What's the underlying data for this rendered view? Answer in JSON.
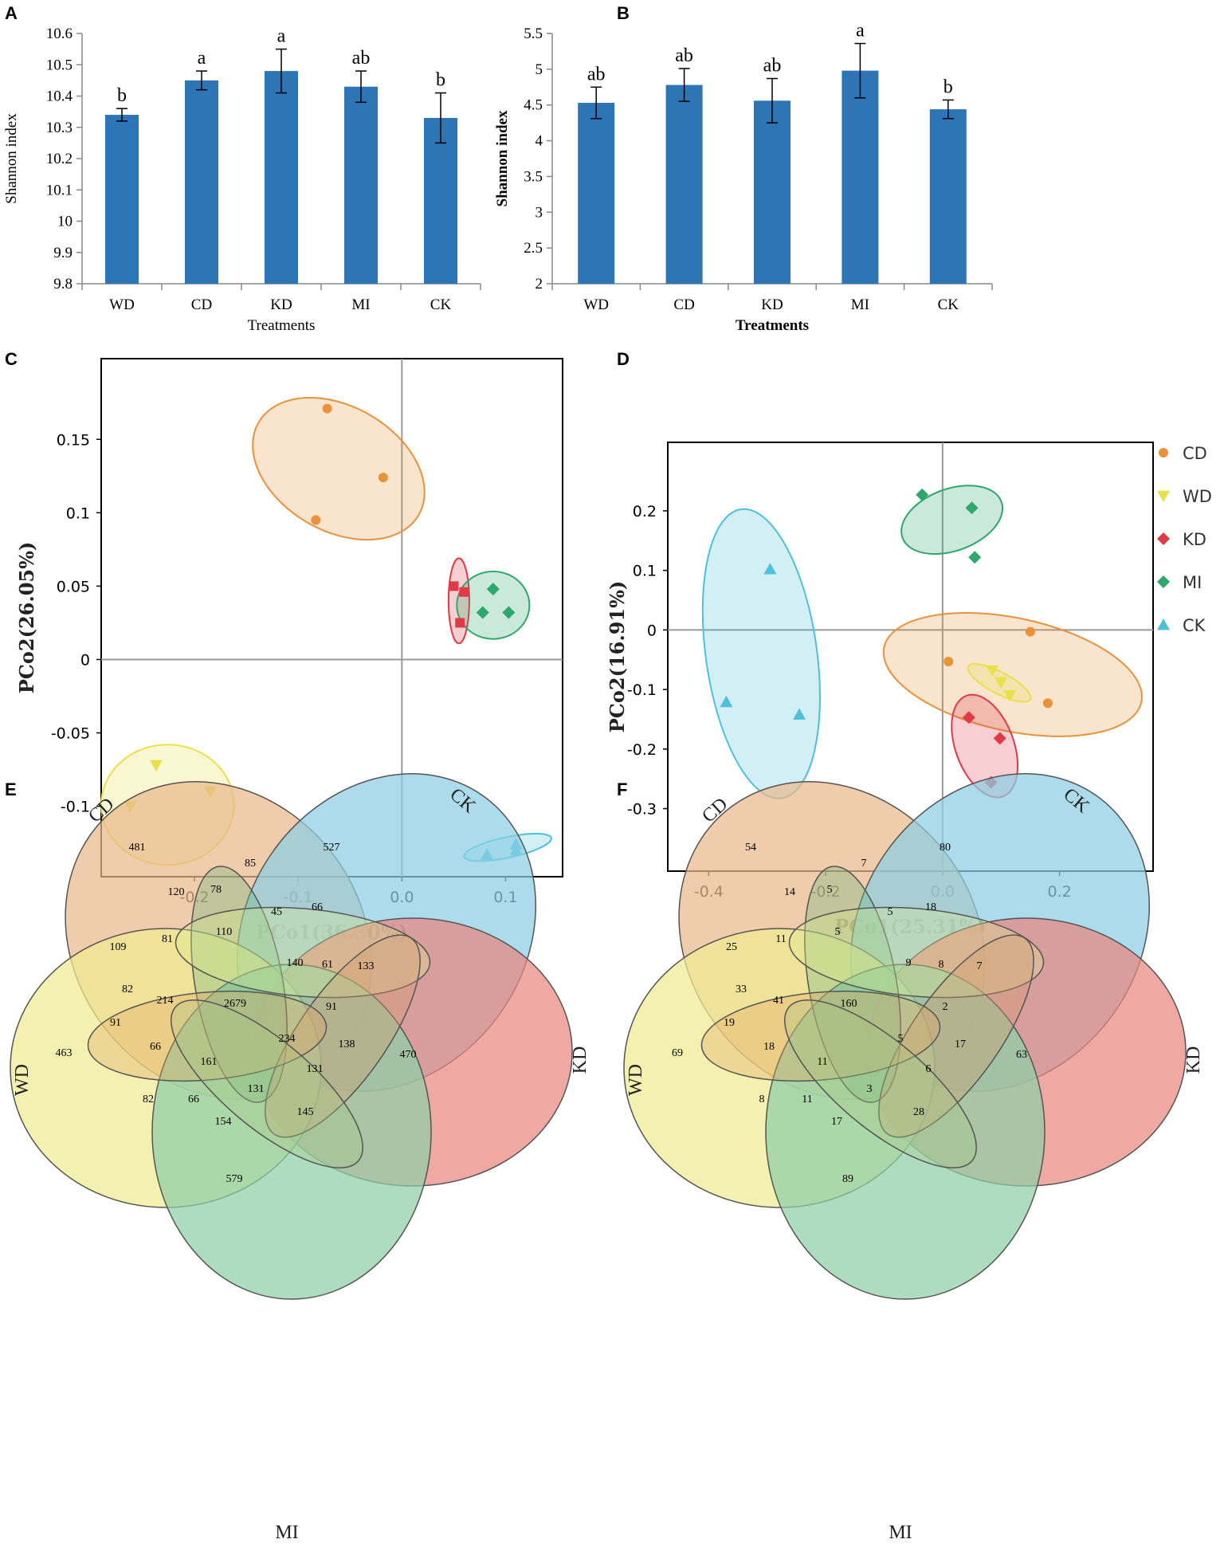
{
  "panels": {
    "A": "A",
    "B": "B",
    "C": "C",
    "D": "D",
    "E": "E",
    "F": "F"
  },
  "colors": {
    "bar": "#2E75B6",
    "CD": "#E8923C",
    "WD": "#E8E14A",
    "KD": "#E03A47",
    "MI": "#2EA86C",
    "CK": "#4DC0DC",
    "venn_CD": "#E9B98A",
    "venn_CK": "#8CCFE3",
    "venn_KD": "#E9867E",
    "venn_WD": "#F0EC92",
    "venn_MI": "#8FCFA6"
  },
  "chart_data": [
    {
      "id": "A",
      "type": "bar",
      "categories": [
        "WD",
        "CD",
        "KD",
        "MI",
        "CK"
      ],
      "values": [
        10.34,
        10.45,
        10.48,
        10.43,
        10.33
      ],
      "errors": [
        0.02,
        0.03,
        0.07,
        0.05,
        0.08
      ],
      "significance": [
        "b",
        "a",
        "a",
        "ab",
        "b"
      ],
      "xlabel": "Treatments",
      "ylabel": "Shannon index",
      "ylim": [
        9.8,
        10.6
      ],
      "yticks": [
        "9.8",
        "9.9",
        "10",
        "10.1",
        "10.2",
        "10.3",
        "10.4",
        "10.5",
        "10.6"
      ]
    },
    {
      "id": "B",
      "type": "bar",
      "categories": [
        "WD",
        "CD",
        "KD",
        "MI",
        "CK"
      ],
      "values": [
        4.53,
        4.78,
        4.56,
        4.98,
        4.44
      ],
      "errors": [
        0.22,
        0.23,
        0.31,
        0.38,
        0.13
      ],
      "significance": [
        "ab",
        "ab",
        "ab",
        "a",
        "b"
      ],
      "xlabel": "Treatments",
      "ylabel": "Shannon index",
      "ylim": [
        2,
        5.5
      ],
      "yticks": [
        "2",
        "2.5",
        "3",
        "3.5",
        "4",
        "4.5",
        "5",
        "5.5"
      ]
    },
    {
      "id": "C",
      "type": "scatter",
      "xlabel": "PCo1(36.30%)",
      "ylabel": "PCo2(26.05%)",
      "xlim": [
        -0.29,
        0.155
      ],
      "ylim": [
        -0.148,
        0.205
      ],
      "xticks": [
        "-0.2",
        "-0.1",
        "0.0",
        "0.1"
      ],
      "yticks": [
        "-0.1",
        "-0.05",
        "0",
        "0.05",
        "0.1",
        "0.15"
      ],
      "series": [
        {
          "name": "CD",
          "marker": "circle",
          "points": [
            [
              -0.072,
              0.171
            ],
            [
              -0.018,
              0.124
            ],
            [
              -0.083,
              0.095
            ]
          ],
          "ellipse": {
            "cx": -0.061,
            "cy": 0.13,
            "rx": 0.06,
            "ry": 0.063,
            "angle": -60
          }
        },
        {
          "name": "KD",
          "marker": "square",
          "points": [
            [
              0.05,
              0.05
            ],
            [
              0.06,
              0.046
            ],
            [
              0.056,
              0.025
            ]
          ],
          "ellipse": {
            "cx": 0.055,
            "cy": 0.04,
            "rx": 0.01,
            "ry": 0.029,
            "angle": 0
          }
        },
        {
          "name": "MI",
          "marker": "diamond",
          "points": [
            [
              0.088,
              0.048
            ],
            [
              0.078,
              0.032
            ],
            [
              0.103,
              0.032
            ]
          ],
          "ellipse": {
            "cx": 0.088,
            "cy": 0.037,
            "rx": 0.035,
            "ry": 0.023,
            "angle": 0
          }
        },
        {
          "name": "WD",
          "marker": "triangle-down",
          "points": [
            [
              -0.237,
              -0.072
            ],
            [
              -0.262,
              -0.1
            ],
            [
              -0.185,
              -0.09
            ]
          ],
          "ellipse": {
            "cx": -0.226,
            "cy": -0.099,
            "rx": 0.064,
            "ry": 0.041,
            "angle": 0
          }
        },
        {
          "name": "CK",
          "marker": "triangle-up",
          "points": [
            [
              0.082,
              -0.133
            ],
            [
              0.11,
              -0.126
            ],
            [
              0.11,
              -0.13
            ]
          ],
          "ellipse": {
            "cx": 0.102,
            "cy": -0.128,
            "rx": 0.043,
            "ry": 0.007,
            "angle": -12
          }
        }
      ]
    },
    {
      "id": "D",
      "type": "scatter",
      "xlabel": "PCo1(25.31%)",
      "ylabel": "PCo2(16.91%)",
      "xlim": [
        -0.47,
        0.36
      ],
      "ylim": [
        -0.405,
        0.315
      ],
      "xticks": [
        "-0.4",
        "-0.2",
        "0.0",
        "0.2"
      ],
      "yticks": [
        "-0.3",
        "-0.2",
        "-0.1",
        "0",
        "0.1",
        "0.2"
      ],
      "legend": [
        "CD",
        "WD",
        "KD",
        "MI",
        "CK"
      ],
      "series": [
        {
          "name": "CD",
          "marker": "circle",
          "points": [
            [
              0.15,
              -0.003
            ],
            [
              0.01,
              -0.053
            ],
            [
              0.18,
              -0.123
            ]
          ],
          "ellipse": {
            "cx": 0.12,
            "cy": -0.075,
            "rx": 0.225,
            "ry": 0.095,
            "angle": 12
          }
        },
        {
          "name": "WD",
          "marker": "triangle-down",
          "points": [
            [
              0.085,
              -0.068
            ],
            [
              0.1,
              -0.088
            ],
            [
              0.115,
              -0.11
            ]
          ],
          "ellipse": {
            "cx": 0.097,
            "cy": -0.089,
            "rx": 0.06,
            "ry": 0.018,
            "angle": 28
          }
        },
        {
          "name": "KD",
          "marker": "diamond",
          "points": [
            [
              0.045,
              -0.147
            ],
            [
              0.098,
              -0.182
            ],
            [
              0.083,
              -0.256
            ]
          ],
          "ellipse": {
            "cx": 0.072,
            "cy": -0.195,
            "rx": 0.05,
            "ry": 0.09,
            "angle": -20
          }
        },
        {
          "name": "MI",
          "marker": "diamond",
          "points": [
            [
              -0.035,
              0.227
            ],
            [
              0.05,
              0.205
            ],
            [
              0.055,
              0.122
            ]
          ],
          "ellipse": {
            "cx": 0.016,
            "cy": 0.185,
            "rx": 0.09,
            "ry": 0.052,
            "angle": -20
          }
        },
        {
          "name": "CK",
          "marker": "triangle-up",
          "points": [
            [
              -0.295,
              0.102
            ],
            [
              -0.37,
              -0.121
            ],
            [
              -0.245,
              -0.142
            ]
          ],
          "ellipse": {
            "cx": -0.31,
            "cy": -0.04,
            "rx": 0.095,
            "ry": 0.245,
            "angle": -8
          }
        }
      ]
    },
    {
      "id": "E",
      "type": "venn",
      "sets": [
        "CD",
        "CK",
        "KD",
        "MI",
        "WD"
      ],
      "region_values": [
        "481",
        "527",
        "470",
        "579",
        "463",
        "85",
        "120",
        "78",
        "45",
        "66",
        "109",
        "81",
        "110",
        "61",
        "133",
        "82",
        "214",
        "2679",
        "140",
        "91",
        "91",
        "66",
        "161",
        "234",
        "138",
        "131",
        "82",
        "66",
        "131",
        "145",
        "154"
      ]
    },
    {
      "id": "F",
      "type": "venn",
      "sets": [
        "CD",
        "CK",
        "KD",
        "MI",
        "WD"
      ],
      "region_values": [
        "54",
        "80",
        "63",
        "89",
        "69",
        "7",
        "14",
        "5",
        "5",
        "18",
        "25",
        "11",
        "5",
        "8",
        "7",
        "33",
        "41",
        "160",
        "9",
        "2",
        "19",
        "18",
        "11",
        "5",
        "17",
        "6",
        "8",
        "11",
        "3",
        "28",
        "17"
      ]
    }
  ]
}
